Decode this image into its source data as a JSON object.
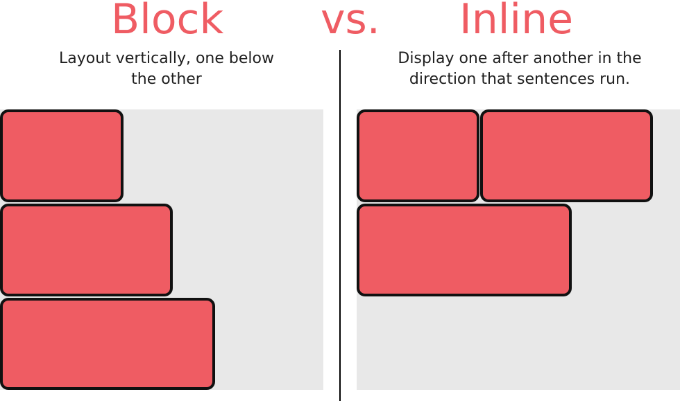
{
  "header": {
    "block_title": "Block",
    "vs_label": "vs.",
    "inline_title": "Inline"
  },
  "block": {
    "description_line1": "Layout vertically, one below",
    "description_line2": "the other"
  },
  "inline": {
    "description_line1": "Display one after another in the",
    "description_line2": "direction that sentences run."
  },
  "colors": {
    "accent": "#ef5c63",
    "box_border": "#111111",
    "panel_background": "#e8e8e8",
    "divider": "#000000"
  }
}
